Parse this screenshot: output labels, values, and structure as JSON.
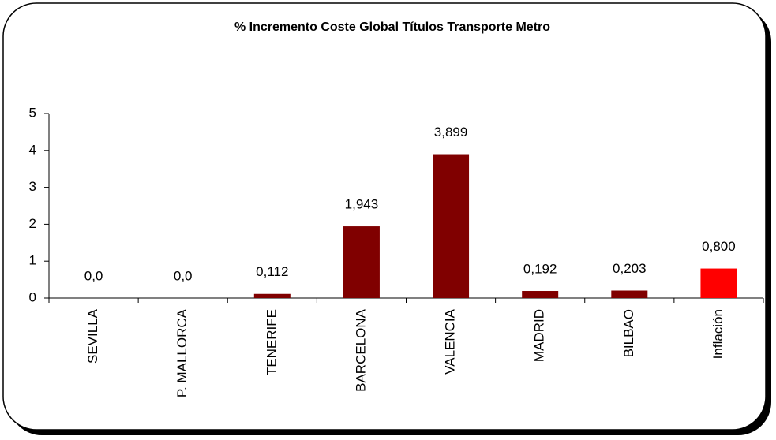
{
  "chart_data": {
    "type": "bar",
    "title": "% Incremento Coste Global Títulos Transporte Metro",
    "categories": [
      "SEVILLA",
      "P. MALLORCA",
      "TENERIFE",
      "BARCELONA",
      "VALENCIA",
      "MADRID",
      "BILBAO",
      "Inflación"
    ],
    "values": [
      0.0,
      0.0,
      0.112,
      1.943,
      3.899,
      0.192,
      0.203,
      0.8
    ],
    "value_labels": [
      "0,0",
      "0,0",
      "0,112",
      "1,943",
      "3,899",
      "0,192",
      "0,203",
      "0,800"
    ],
    "colors": [
      "#800000",
      "#800000",
      "#800000",
      "#800000",
      "#800000",
      "#800000",
      "#800000",
      "#ff0000"
    ],
    "ylim": [
      0,
      5
    ],
    "yticks": [
      0,
      1,
      2,
      3,
      4,
      5
    ],
    "grid": false
  }
}
